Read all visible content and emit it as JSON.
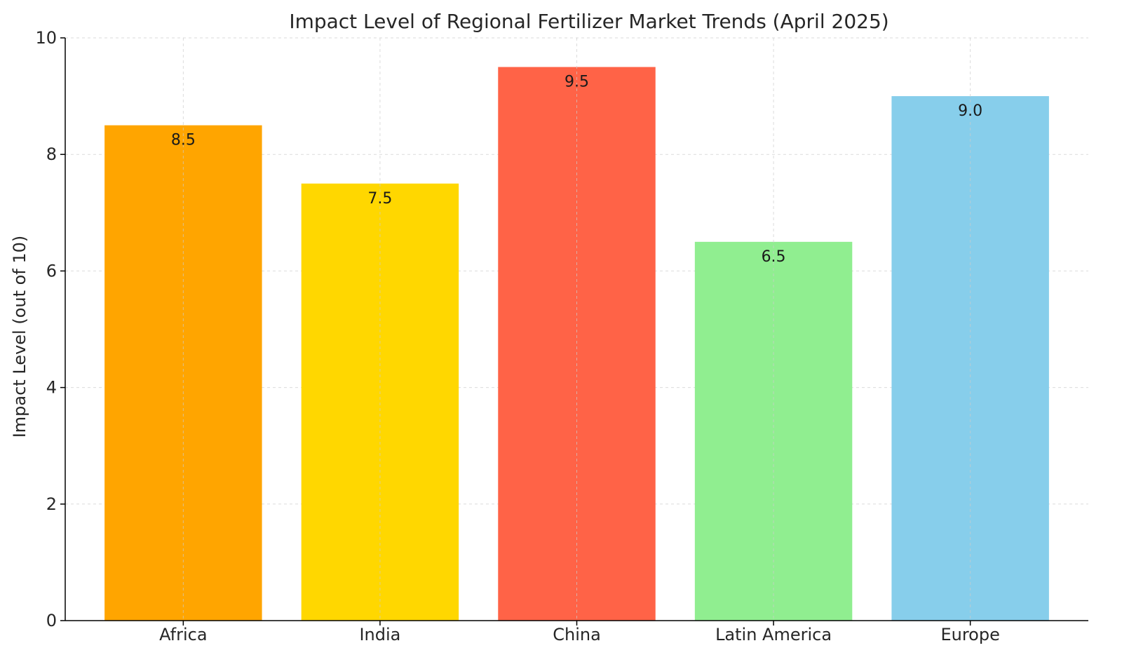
{
  "chart_data": {
    "type": "bar",
    "title": "Impact Level of Regional Fertilizer Market Trends (April 2025)",
    "xlabel": "",
    "ylabel": "Impact Level (out of 10)",
    "categories": [
      "Africa",
      "India",
      "China",
      "Latin America",
      "Europe"
    ],
    "values": [
      8.5,
      7.5,
      9.5,
      6.5,
      9.0
    ],
    "value_labels": [
      "8.5",
      "7.5",
      "9.5",
      "6.5",
      "9.0"
    ],
    "colors": [
      "#FFA500",
      "#FFD700",
      "#FF6347",
      "#90EE90",
      "#87CEEB"
    ],
    "ylim": [
      0,
      10
    ],
    "yticks": [
      0,
      2,
      4,
      6,
      8,
      10
    ],
    "ytick_labels": [
      "0",
      "2",
      "4",
      "6",
      "8",
      "10"
    ],
    "grid": true,
    "legend": "none"
  }
}
